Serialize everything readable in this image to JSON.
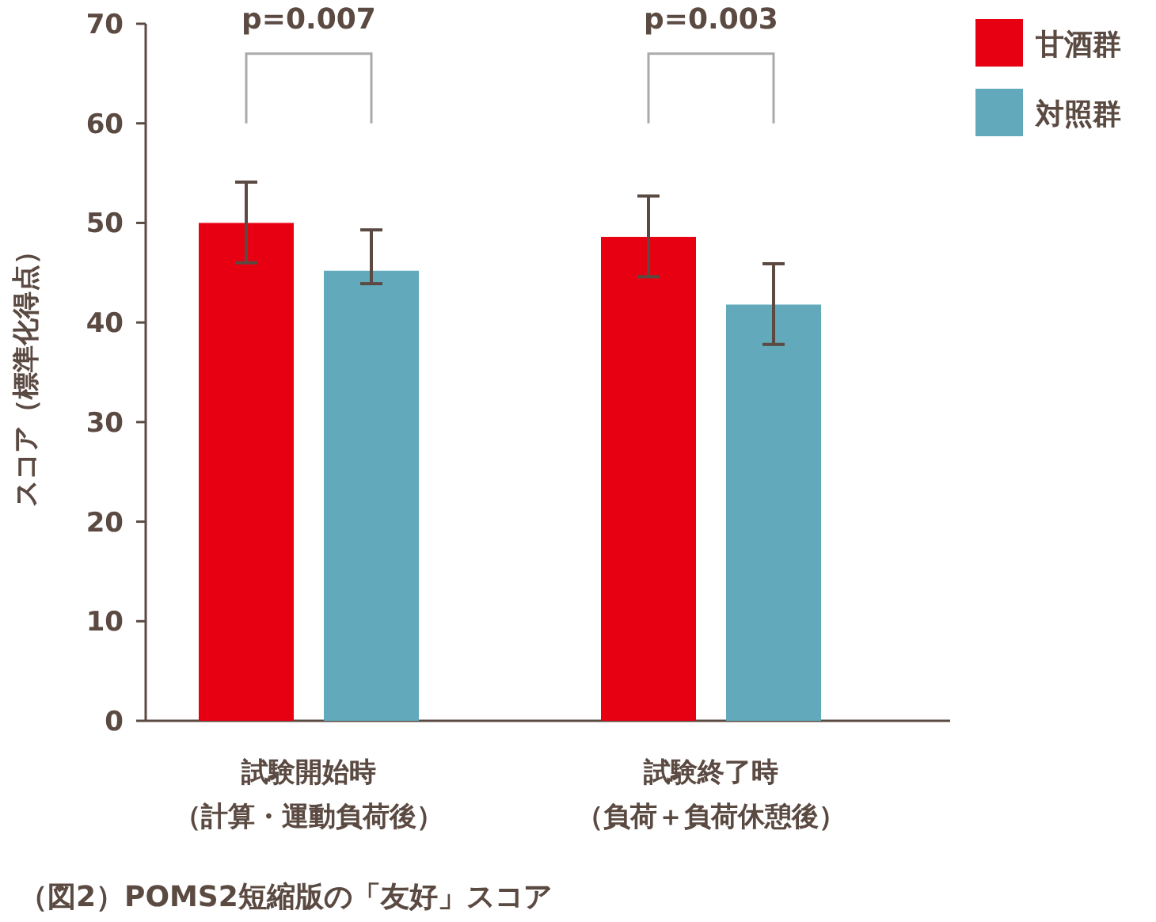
{
  "chart_data": {
    "type": "bar",
    "title": "（図2）POMS2短縮版の「友好」スコア",
    "ylabel": "スコア（標準化得点）",
    "categories": [
      "試験開始時（計算・運動負荷後）",
      "試験終了時（負荷＋負荷休憩後）"
    ],
    "series": [
      {
        "name": "甘酒群",
        "color": "#e60012",
        "values": [
          50.0,
          48.6
        ],
        "errors": [
          [
            46.0,
            54.1
          ],
          [
            44.6,
            52.7
          ]
        ]
      },
      {
        "name": "対照群",
        "color": "#61a9bb",
        "values": [
          45.2,
          41.8
        ],
        "errors": [
          [
            43.9,
            49.3
          ],
          [
            37.8,
            45.9
          ]
        ]
      }
    ],
    "annotations": [
      "p=0.007",
      "p=0.003"
    ],
    "ylim": [
      0,
      70
    ],
    "yticks": [
      0,
      10,
      20,
      30,
      40,
      50,
      60,
      70
    ],
    "grid": false,
    "legend": "top right"
  }
}
